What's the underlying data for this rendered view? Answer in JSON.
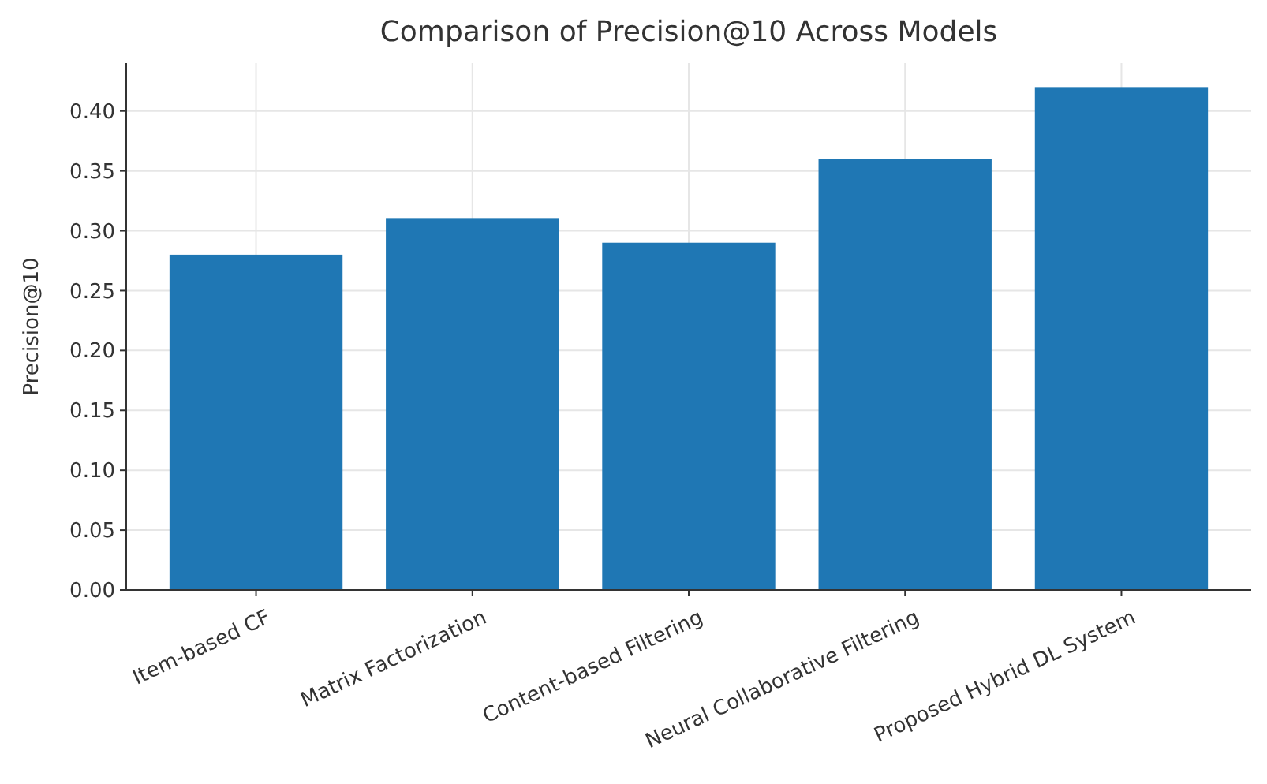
{
  "chart_data": {
    "type": "bar",
    "title": "Comparison of Precision@10 Across Models",
    "ylabel": "Precision@10",
    "categories": [
      "Item-based CF",
      "Matrix Factorization",
      "Content-based Filtering",
      "Neural Collaborative Filtering",
      "Proposed Hybrid DL System"
    ],
    "values": [
      0.28,
      0.31,
      0.29,
      0.36,
      0.42
    ],
    "color": "#1f77b4",
    "ylim": [
      0,
      0.44
    ],
    "yticks": [
      {
        "value": 0,
        "label": "0.00"
      },
      {
        "value": 0.05,
        "label": "0.05"
      },
      {
        "value": 0.1,
        "label": "0.10"
      },
      {
        "value": 0.15,
        "label": "0.15"
      },
      {
        "value": 0.2,
        "label": "0.20"
      },
      {
        "value": 0.25,
        "label": "0.25"
      },
      {
        "value": 0.3,
        "label": "0.30"
      },
      {
        "value": 0.35,
        "label": "0.35"
      },
      {
        "value": 0.4,
        "label": "0.40"
      }
    ],
    "grid": true
  }
}
